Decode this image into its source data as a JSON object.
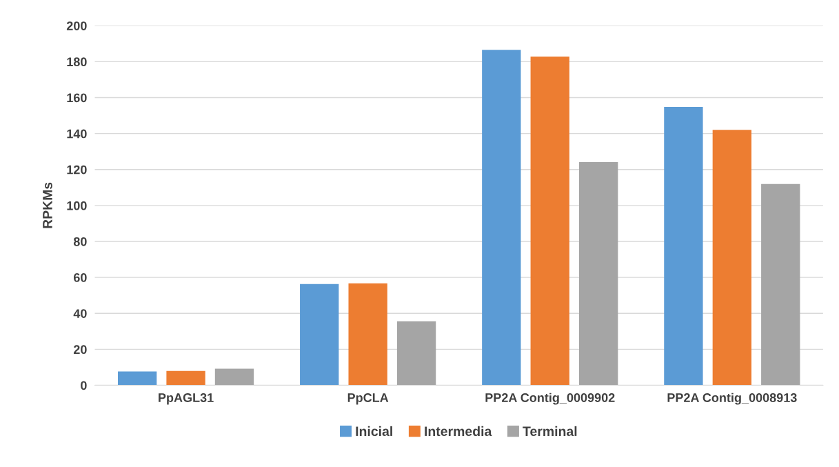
{
  "chart_data": {
    "type": "bar",
    "ylabel": "RPKMs",
    "categories": [
      "PpAGL31",
      "PpCLA",
      "PP2A Contig_0009902",
      "PP2A Contig_0008913"
    ],
    "series": [
      {
        "name": "Inicial",
        "color": "#5b9bd5",
        "values": [
          7.7,
          56.3,
          186.6,
          154.8
        ]
      },
      {
        "name": "Intermedia",
        "color": "#ed7d31",
        "values": [
          8,
          56.7,
          182.8,
          142.1
        ]
      },
      {
        "name": "Terminal",
        "color": "#a5a5a5",
        "values": [
          9.2,
          35.6,
          124.1,
          111.9
        ]
      }
    ],
    "ylim": [
      0,
      200
    ],
    "yticks": [
      0,
      20,
      40,
      60,
      80,
      100,
      120,
      140,
      160,
      180,
      200
    ],
    "grid": "y",
    "legend": "bottom"
  }
}
